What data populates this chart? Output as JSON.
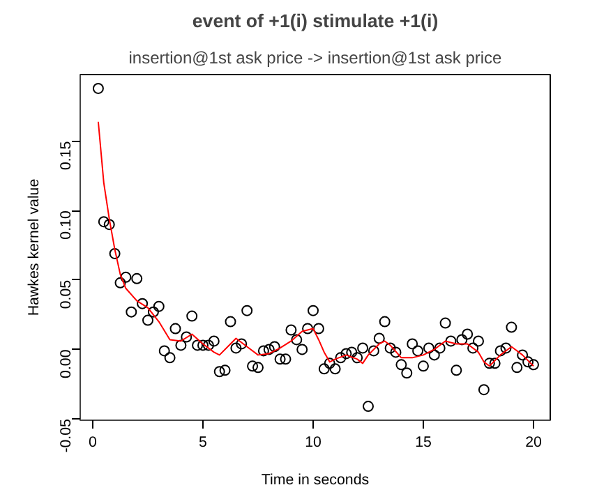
{
  "chart_data": {
    "type": "scatter",
    "title": "event of +1(i) stimulate +1(i)",
    "subtitle": "insertion@1st ask price -> insertion@1st ask price",
    "xlabel": "Time in seconds",
    "ylabel": "Hawkes kernel value",
    "xlim": [
      -0.57,
      20.76
    ],
    "ylim": [
      -0.051,
      0.198
    ],
    "xticks": [
      0,
      5,
      10,
      15,
      20
    ],
    "yticks": [
      {
        "value": -0.05,
        "label": "-0.05"
      },
      {
        "value": 0,
        "label": "0.00"
      },
      {
        "value": 0.05,
        "label": "0.05"
      },
      {
        "value": 0.1,
        "label": "0.10"
      },
      {
        "value": 0.15,
        "label": "0.15"
      }
    ],
    "grid": false,
    "series": [
      {
        "marker": "circle",
        "color": "#000000",
        "x": [
          0.25,
          0.5,
          0.75,
          1.0,
          1.25,
          1.5,
          1.75,
          2.0,
          2.25,
          2.5,
          2.75,
          3.0,
          3.25,
          3.5,
          3.75,
          4.0,
          4.25,
          4.5,
          4.75,
          5.0,
          5.25,
          5.5,
          5.75,
          6.0,
          6.25,
          6.5,
          6.75,
          7.0,
          7.25,
          7.5,
          7.75,
          8.0,
          8.25,
          8.5,
          8.75,
          9.0,
          9.25,
          9.5,
          9.75,
          10.0,
          10.25,
          10.5,
          10.75,
          11.0,
          11.25,
          11.5,
          11.75,
          12.0,
          12.25,
          12.5,
          12.75,
          13.0,
          13.25,
          13.5,
          13.75,
          14.0,
          14.25,
          14.5,
          14.75,
          15.0,
          15.25,
          15.5,
          15.75,
          16.0,
          16.25,
          16.5,
          16.75,
          17.0,
          17.25,
          17.5,
          17.75,
          18.0,
          18.25,
          18.5,
          18.75,
          19.0,
          19.25,
          19.5,
          19.75,
          20.0
        ],
        "values": [
          0.188,
          0.092,
          0.09,
          0.069,
          0.048,
          0.052,
          0.027,
          0.051,
          0.033,
          0.021,
          0.027,
          0.031,
          -0.001,
          -0.006,
          0.015,
          0.003,
          0.009,
          0.024,
          0.003,
          0.003,
          0.003,
          0.006,
          -0.016,
          -0.015,
          0.02,
          0.001,
          0.004,
          0.028,
          -0.012,
          -0.013,
          -0.001,
          0.0,
          0.002,
          -0.007,
          -0.007,
          0.014,
          0.007,
          0.0,
          0.015,
          0.028,
          0.015,
          -0.014,
          -0.01,
          -0.014,
          -0.006,
          -0.003,
          -0.002,
          -0.006,
          0.001,
          -0.041,
          -0.001,
          0.008,
          0.02,
          0.001,
          -0.002,
          -0.011,
          -0.017,
          0.004,
          -0.001,
          -0.012,
          0.001,
          -0.004,
          0.001,
          0.019,
          0.006,
          -0.015,
          0.007,
          0.011,
          0.001,
          0.006,
          -0.029,
          -0.01,
          -0.01,
          -0.001,
          0.001,
          0.016,
          -0.013,
          -0.004,
          -0.009,
          -0.011
        ]
      },
      {
        "type": "line",
        "marker": "none",
        "line_style": "solid",
        "color": "#ff0000",
        "x": [
          0.25,
          0.5,
          0.75,
          1.0,
          1.25,
          1.5,
          2.0,
          2.5,
          3.0,
          3.5,
          4.0,
          4.5,
          5.0,
          5.5,
          5.75,
          6.25,
          6.5,
          7.0,
          7.5,
          8.0,
          8.5,
          9.0,
          9.5,
          10.0,
          10.25,
          10.5,
          10.75,
          11.0,
          11.5,
          12.0,
          12.25,
          12.5,
          13.0,
          13.25,
          13.5,
          14.0,
          14.5,
          15.0,
          15.5,
          16.0,
          16.5,
          17.0,
          17.5,
          17.75,
          18.0,
          18.5,
          19.0,
          19.5,
          20.0
        ],
        "values": [
          0.164,
          0.12,
          0.094,
          0.072,
          0.054,
          0.044,
          0.035,
          0.03,
          0.02,
          0.007,
          0.006,
          0.011,
          0.004,
          -0.002,
          -0.004,
          0.004,
          0.008,
          0.002,
          -0.004,
          -0.003,
          0.001,
          0.006,
          0.013,
          0.015,
          0.007,
          -0.002,
          -0.009,
          -0.007,
          -0.004,
          -0.007,
          -0.01,
          -0.004,
          0.004,
          0.006,
          0.003,
          -0.006,
          -0.006,
          -0.004,
          0.0,
          0.006,
          0.004,
          0.004,
          -0.002,
          -0.009,
          -0.012,
          -0.004,
          0.002,
          -0.004,
          -0.012
        ]
      }
    ]
  }
}
